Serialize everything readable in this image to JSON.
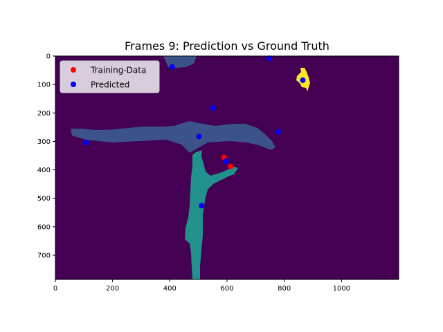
{
  "chart_data": {
    "type": "scatter",
    "title": "Frames 9: Prediction vs Ground Truth",
    "xlabel": "",
    "ylabel": "",
    "xlim": [
      0,
      1200
    ],
    "ylim": [
      785,
      0
    ],
    "y_inverted": true,
    "x_ticks": [
      0,
      200,
      400,
      600,
      800,
      1000
    ],
    "y_ticks": [
      0,
      100,
      200,
      300,
      400,
      500,
      600,
      700
    ],
    "grid": false,
    "legend_position": "upper-left",
    "background_image": "segmentation mask (viridis colormap)",
    "mask_colors": {
      "background": "#440154",
      "region_low": "#3b528b",
      "region_mid": "#21918c",
      "region_high": "#fde725"
    },
    "series": [
      {
        "name": "Training-Data",
        "color": "#ff0000",
        "points": [
          [
            589,
            356
          ],
          [
            612,
            388
          ]
        ]
      },
      {
        "name": "Predicted",
        "color": "#0000ff",
        "points": [
          [
            408,
            38
          ],
          [
            748,
            8
          ],
          [
            865,
            85
          ],
          [
            551,
            183
          ],
          [
            502,
            283
          ],
          [
            779,
            266
          ],
          [
            107,
            304
          ],
          [
            596,
            370
          ],
          [
            511,
            526
          ]
        ]
      }
    ]
  }
}
